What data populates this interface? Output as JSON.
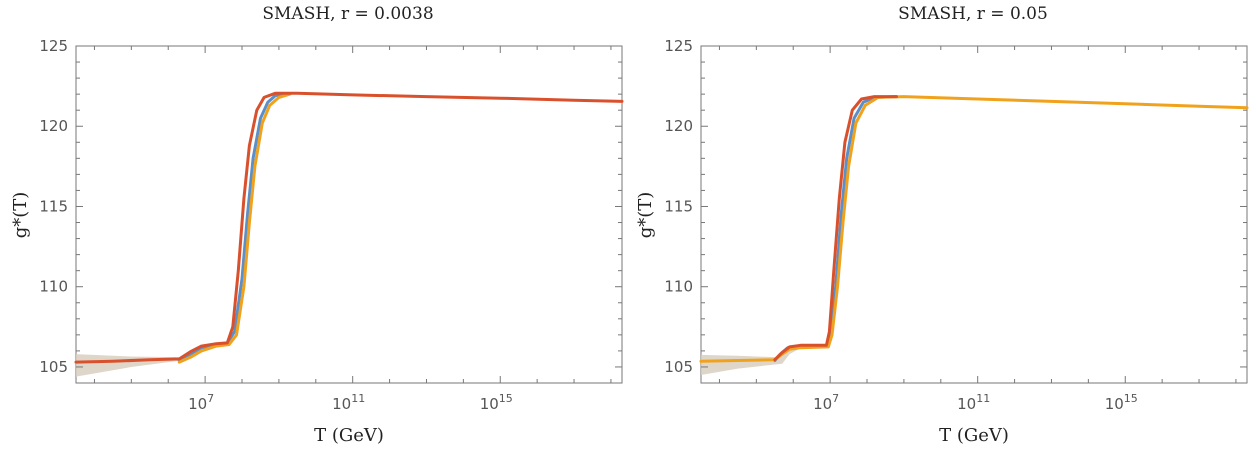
{
  "chart_data": [
    {
      "type": "line",
      "title": "SMASH, r = 0.0038",
      "xlabel": "T (GeV)",
      "ylabel": "g*(T)",
      "x_scale": "log",
      "xlim_log10": [
        3.5,
        18.3
      ],
      "ylim": [
        104,
        125
      ],
      "grid": false,
      "x_ticks": [
        {
          "value": 7,
          "label": "10",
          "exp": "7"
        },
        {
          "value": 11,
          "label": "10",
          "exp": "11"
        },
        {
          "value": 15,
          "label": "10",
          "exp": "15"
        }
      ],
      "y_ticks": [
        {
          "value": 105,
          "label": "105"
        },
        {
          "value": 110,
          "label": "110"
        },
        {
          "value": 115,
          "label": "115"
        },
        {
          "value": 120,
          "label": "120"
        },
        {
          "value": 125,
          "label": "125"
        }
      ],
      "band": {
        "color": "#d9cfc1",
        "upper": [
          [
            3.5,
            105.8
          ],
          [
            5.0,
            105.65
          ],
          [
            6.35,
            105.6
          ],
          [
            6.6,
            105.8
          ],
          [
            7.0,
            106.2
          ]
        ],
        "lower": [
          [
            7.0,
            106.2
          ],
          [
            6.6,
            105.5
          ],
          [
            6.35,
            105.4
          ],
          [
            5.0,
            105.0
          ],
          [
            3.5,
            104.4
          ]
        ]
      },
      "series": [
        {
          "color": "#5b8fc9",
          "points": [
            [
              6.3,
              105.4
            ],
            [
              6.6,
              105.8
            ],
            [
              6.9,
              106.2
            ],
            [
              7.3,
              106.4
            ],
            [
              7.6,
              106.5
            ],
            [
              7.8,
              107.2
            ],
            [
              8.0,
              110.5
            ],
            [
              8.15,
              114.5
            ],
            [
              8.3,
              118.0
            ],
            [
              8.5,
              120.5
            ],
            [
              8.7,
              121.5
            ],
            [
              8.9,
              121.9
            ],
            [
              9.2,
              122.0
            ]
          ]
        },
        {
          "color": "#f1a21c",
          "points": [
            [
              6.3,
              105.3
            ],
            [
              6.6,
              105.6
            ],
            [
              6.9,
              106.0
            ],
            [
              7.3,
              106.3
            ],
            [
              7.65,
              106.4
            ],
            [
              7.85,
              107.0
            ],
            [
              8.05,
              110.0
            ],
            [
              8.2,
              114.0
            ],
            [
              8.35,
              117.5
            ],
            [
              8.55,
              120.2
            ],
            [
              8.75,
              121.3
            ],
            [
              9.0,
              121.8
            ],
            [
              9.3,
              122.0
            ]
          ]
        },
        {
          "color": "#d9512c",
          "points": [
            [
              3.5,
              105.3
            ],
            [
              4.5,
              105.35
            ],
            [
              5.5,
              105.45
            ],
            [
              6.3,
              105.5
            ],
            [
              6.6,
              105.95
            ],
            [
              6.9,
              106.3
            ],
            [
              7.3,
              106.45
            ],
            [
              7.6,
              106.5
            ],
            [
              7.75,
              107.5
            ],
            [
              7.9,
              111.0
            ],
            [
              8.05,
              115.5
            ],
            [
              8.2,
              118.8
            ],
            [
              8.4,
              121.0
            ],
            [
              8.6,
              121.8
            ],
            [
              8.9,
              122.05
            ],
            [
              9.5,
              122.05
            ],
            [
              11.0,
              121.95
            ],
            [
              13.0,
              121.85
            ],
            [
              15.0,
              121.75
            ],
            [
              17.0,
              121.62
            ],
            [
              18.3,
              121.55
            ]
          ]
        }
      ]
    },
    {
      "type": "line",
      "title": "SMASH, r = 0.05",
      "xlabel": "T (GeV)",
      "ylabel": "g*(T)",
      "x_scale": "log",
      "xlim_log10": [
        3.5,
        18.3
      ],
      "ylim": [
        104,
        125
      ],
      "grid": false,
      "x_ticks": [
        {
          "value": 7,
          "label": "10",
          "exp": "7"
        },
        {
          "value": 11,
          "label": "10",
          "exp": "11"
        },
        {
          "value": 15,
          "label": "10",
          "exp": "15"
        }
      ],
      "y_ticks": [
        {
          "value": 105,
          "label": "105"
        },
        {
          "value": 110,
          "label": "110"
        },
        {
          "value": 115,
          "label": "115"
        },
        {
          "value": 120,
          "label": "120"
        },
        {
          "value": 125,
          "label": "125"
        }
      ],
      "band": {
        "color": "#d9cfc1",
        "upper": [
          [
            3.5,
            105.75
          ],
          [
            4.5,
            105.7
          ],
          [
            5.6,
            105.6
          ],
          [
            5.8,
            106.1
          ],
          [
            6.0,
            106.3
          ],
          [
            6.3,
            106.3
          ]
        ],
        "lower": [
          [
            6.3,
            106.3
          ],
          [
            5.9,
            105.8
          ],
          [
            5.7,
            105.2
          ],
          [
            4.5,
            104.9
          ],
          [
            3.5,
            104.5
          ]
        ]
      },
      "series": [
        {
          "color": "#5b8fc9",
          "points": [
            [
              5.5,
              105.4
            ],
            [
              5.65,
              105.8
            ],
            [
              5.85,
              106.2
            ],
            [
              6.2,
              106.3
            ],
            [
              6.9,
              106.3
            ],
            [
              7.0,
              107.0
            ],
            [
              7.15,
              110.0
            ],
            [
              7.3,
              114.5
            ],
            [
              7.45,
              118.0
            ],
            [
              7.65,
              120.5
            ],
            [
              7.9,
              121.5
            ],
            [
              8.2,
              121.8
            ],
            [
              8.8,
              121.85
            ]
          ]
        },
        {
          "color": "#f1a21c",
          "points": [
            [
              3.5,
              105.35
            ],
            [
              4.5,
              105.4
            ],
            [
              5.5,
              105.45
            ],
            [
              5.7,
              105.8
            ],
            [
              5.9,
              106.1
            ],
            [
              6.2,
              106.2
            ],
            [
              6.95,
              106.25
            ],
            [
              7.05,
              107.0
            ],
            [
              7.2,
              110.0
            ],
            [
              7.35,
              114.0
            ],
            [
              7.5,
              117.5
            ],
            [
              7.7,
              120.2
            ],
            [
              7.95,
              121.3
            ],
            [
              8.3,
              121.8
            ],
            [
              9.0,
              121.85
            ],
            [
              11.0,
              121.7
            ],
            [
              13.0,
              121.55
            ],
            [
              15.0,
              121.4
            ],
            [
              17.0,
              121.25
            ],
            [
              18.3,
              121.15
            ]
          ]
        },
        {
          "color": "#d9512c",
          "points": [
            [
              5.5,
              105.45
            ],
            [
              5.7,
              105.9
            ],
            [
              5.9,
              106.25
            ],
            [
              6.2,
              106.35
            ],
            [
              6.9,
              106.35
            ],
            [
              6.98,
              107.2
            ],
            [
              7.1,
              111.0
            ],
            [
              7.25,
              115.5
            ],
            [
              7.4,
              119.0
            ],
            [
              7.6,
              121.0
            ],
            [
              7.85,
              121.7
            ],
            [
              8.2,
              121.85
            ],
            [
              8.8,
              121.85
            ]
          ]
        }
      ]
    }
  ]
}
